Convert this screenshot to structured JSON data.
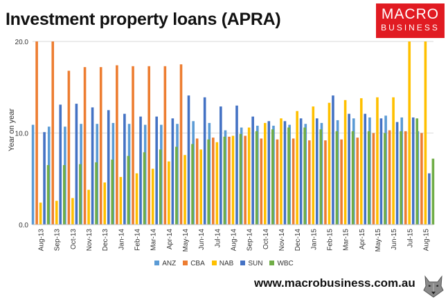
{
  "header": {
    "title": "Investment property loans (APRA)"
  },
  "logo": {
    "line1": "MACRO",
    "line2": "BUSINESS"
  },
  "footer": {
    "url": "www.macrobusiness.com.au"
  },
  "mascot": {
    "icon": "wolf-mascot-icon"
  },
  "chart_data": {
    "type": "bar",
    "ylabel": "Year on year",
    "ylim": [
      0,
      20
    ],
    "yticks": [
      "0.0",
      "10.0",
      "20.0"
    ],
    "grid": "horizontal",
    "legend_position": "bottom",
    "categories": [
      "Aug-13",
      "Sep-13",
      "Oct-13",
      "Nov-13",
      "Dec-13",
      "Jan-14",
      "Feb-14",
      "Mar-14",
      "Apr-14",
      "May-14",
      "Jun-14",
      "Jul-14",
      "Aug-14",
      "Sep-14",
      "Oct-14",
      "Nov-14",
      "Dec-14",
      "Jan-15",
      "Feb-15",
      "Mar-15",
      "Apr-15",
      "May-15",
      "Jun-15",
      "Jul-15",
      "Aug-15"
    ],
    "series": [
      {
        "name": "ANZ",
        "color": "#5b9bd5",
        "values": [
          10.9,
          10.7,
          10.7,
          11.0,
          11.0,
          11.1,
          11.0,
          10.9,
          10.9,
          11.0,
          11.3,
          11.1,
          10.3,
          10.6,
          10.8,
          10.8,
          10.9,
          11.0,
          11.1,
          11.4,
          11.6,
          11.7,
          11.9,
          11.7,
          10.2
        ]
      },
      {
        "name": "CBA",
        "color": "#ed7d31",
        "values": [
          20.0,
          20.0,
          16.8,
          17.2,
          17.2,
          17.4,
          17.3,
          17.3,
          17.3,
          17.5,
          9.4,
          9.5,
          9.6,
          9.7,
          9.4,
          9.3,
          9.4,
          9.2,
          9.2,
          9.3,
          9.5,
          10.0,
          10.3,
          10.2,
          10.0
        ]
      },
      {
        "name": "NAB",
        "color": "#ffc000",
        "values": [
          2.4,
          2.6,
          2.9,
          3.8,
          4.6,
          5.2,
          5.6,
          6.1,
          6.9,
          7.6,
          8.2,
          9.0,
          9.7,
          10.6,
          11.1,
          11.6,
          12.4,
          12.9,
          13.3,
          13.6,
          13.8,
          13.9,
          13.9,
          20.0,
          20.0
        ]
      },
      {
        "name": "SUN",
        "color": "#4472c4",
        "values": [
          10.1,
          13.1,
          13.2,
          12.8,
          12.5,
          12.1,
          11.8,
          11.8,
          11.6,
          14.1,
          13.9,
          12.9,
          13.0,
          11.8,
          11.3,
          11.3,
          11.6,
          11.6,
          14.1,
          12.1,
          12.1,
          11.6,
          11.2,
          11.7,
          5.6
        ]
      },
      {
        "name": "WBC",
        "color": "#70ad47",
        "values": [
          6.5,
          6.5,
          6.6,
          6.8,
          7.1,
          7.5,
          7.9,
          8.2,
          8.5,
          8.8,
          9.3,
          9.6,
          9.9,
          10.2,
          10.4,
          10.6,
          10.6,
          10.4,
          10.2,
          10.2,
          10.2,
          10.0,
          10.2,
          11.6,
          7.2
        ]
      }
    ]
  }
}
